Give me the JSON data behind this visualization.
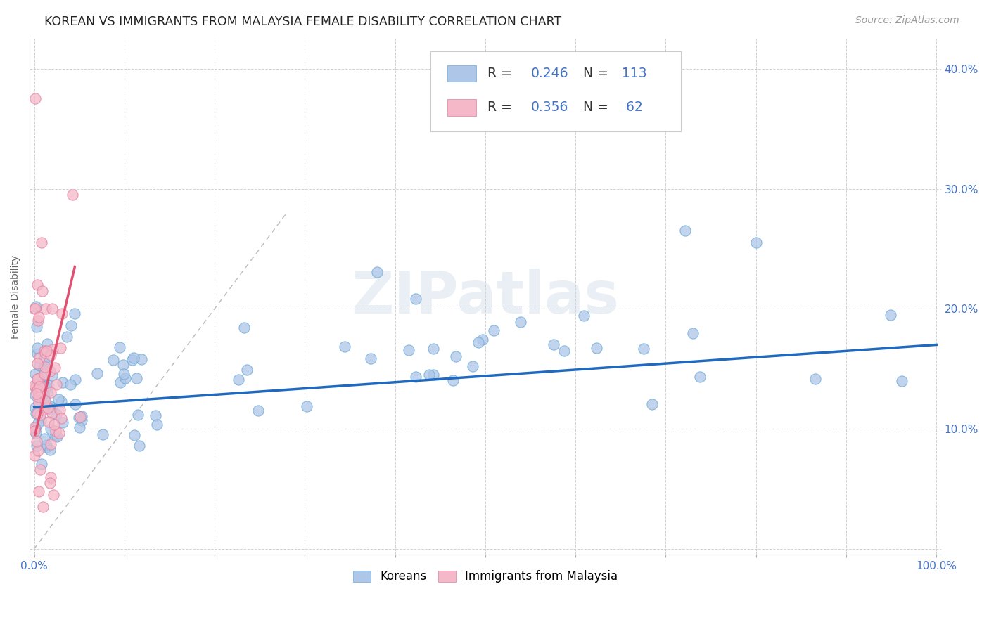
{
  "title": "KOREAN VS IMMIGRANTS FROM MALAYSIA FEMALE DISABILITY CORRELATION CHART",
  "source": "Source: ZipAtlas.com",
  "ylabel": "Female Disability",
  "watermark": "ZIPatlas",
  "legend_korean": {
    "R": 0.246,
    "N": 113,
    "color": "#aec6e8",
    "line_color": "#1f6abf"
  },
  "legend_malaysia": {
    "R": 0.356,
    "N": 62,
    "color": "#f4b8c8",
    "line_color": "#e05070"
  },
  "background_color": "#ffffff",
  "grid_color": "#cccccc",
  "title_color": "#222222",
  "axis_label_color": "#666666",
  "tick_label_color": "#4472c4",
  "watermark_color": "#c8d8e8",
  "watermark_alpha": 0.4,
  "title_fontsize": 12.5,
  "source_fontsize": 10,
  "axis_label_fontsize": 10,
  "tick_fontsize": 11,
  "watermark_fontsize": 60
}
